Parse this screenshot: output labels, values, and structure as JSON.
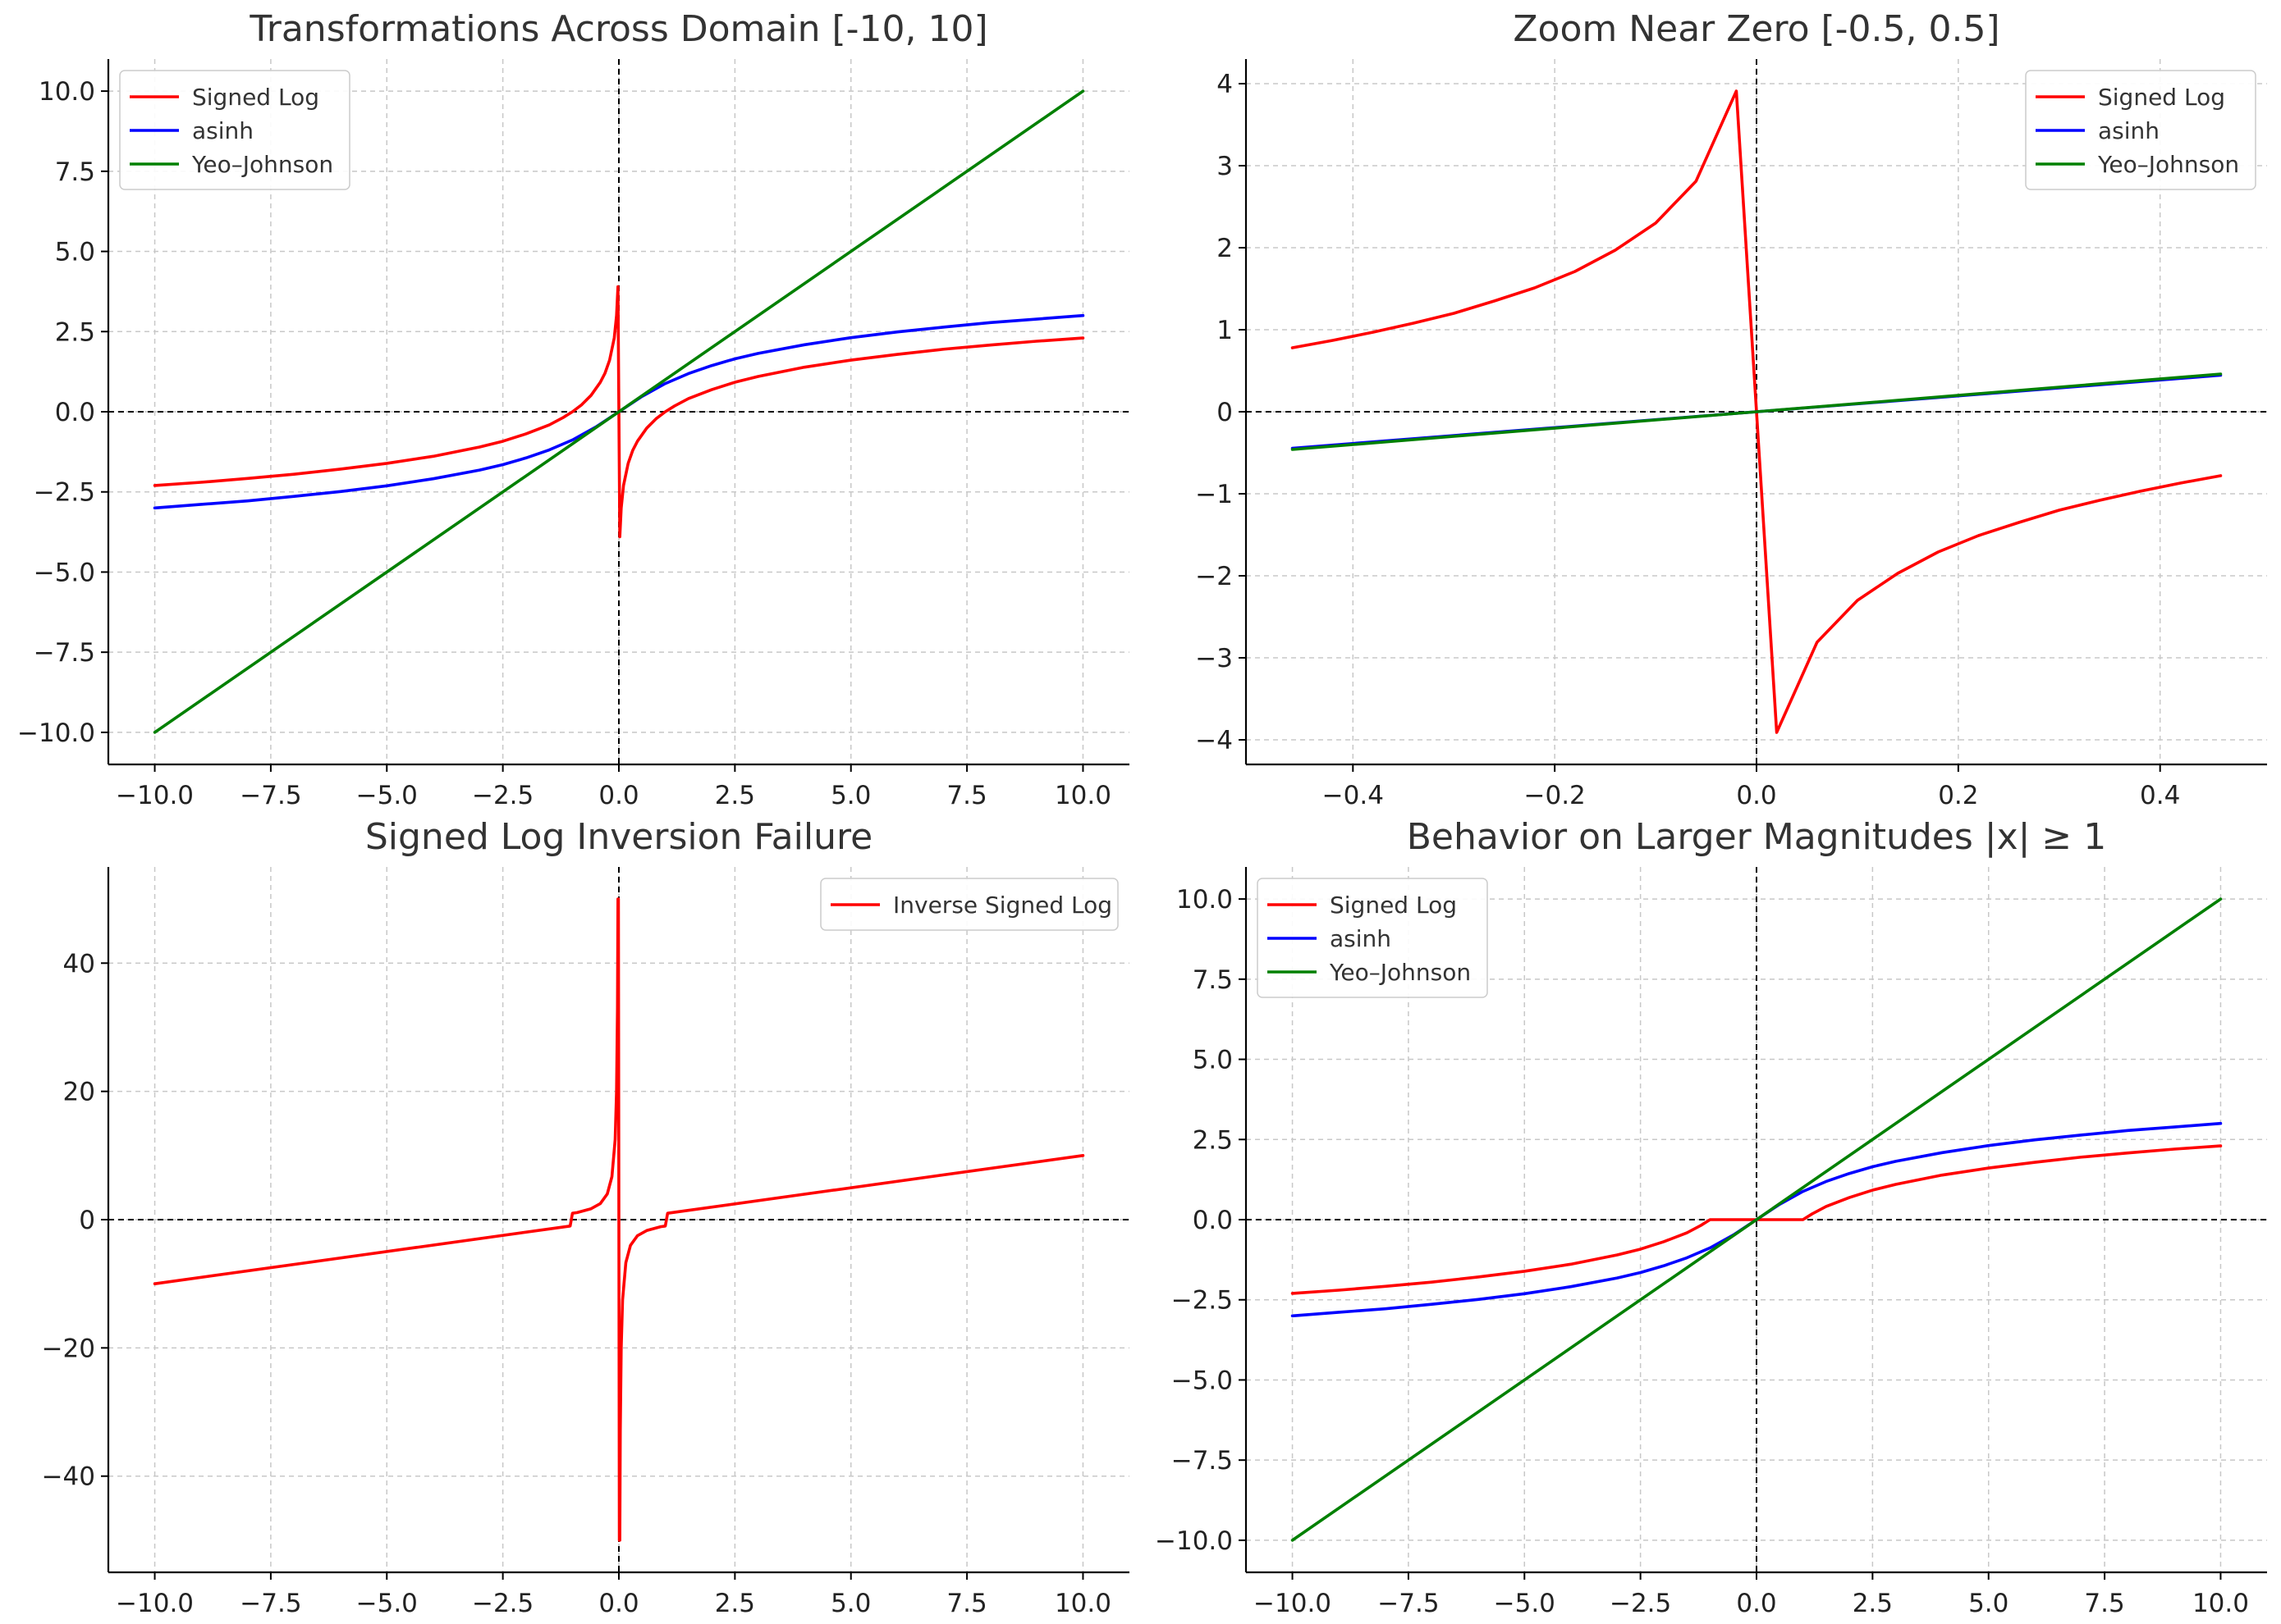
{
  "chart_data": [
    {
      "type": "line",
      "title": "Transformations Across Domain [-10, 10]",
      "xlabel": "",
      "ylabel": "",
      "xlim": [
        -11,
        11
      ],
      "ylim": [
        -11,
        11
      ],
      "xticks": [
        -10,
        -7.5,
        -5,
        -2.5,
        0,
        2.5,
        5,
        7.5,
        10
      ],
      "xtick_labels": [
        "−10.0",
        "−7.5",
        "−5.0",
        "−2.5",
        "0.0",
        "2.5",
        "5.0",
        "7.5",
        "10.0"
      ],
      "yticks": [
        -10,
        -7.5,
        -5,
        -2.5,
        0,
        2.5,
        5,
        7.5,
        10
      ],
      "ytick_labels": [
        "−10.0",
        "−7.5",
        "−5.0",
        "−2.5",
        "0.0",
        "2.5",
        "5.0",
        "7.5",
        "10.0"
      ],
      "grid": true,
      "legend_position": "top-left",
      "series": [
        {
          "name": "Signed Log",
          "color": "#ff0000",
          "x": [
            -10,
            -9,
            -8,
            -7,
            -6,
            -5,
            -4,
            -3,
            -2.5,
            -2,
            -1.5,
            -1.2,
            -1,
            -0.8,
            -0.6,
            -0.4,
            -0.3,
            -0.2,
            -0.1,
            -0.05,
            -0.02,
            0.02,
            0.05,
            0.1,
            0.2,
            0.3,
            0.4,
            0.6,
            0.8,
            1,
            1.2,
            1.5,
            2,
            2.5,
            3,
            4,
            5,
            6,
            7,
            8,
            9,
            10
          ],
          "y": [
            -2.3,
            -2.2,
            -2.08,
            -1.95,
            -1.79,
            -1.61,
            -1.39,
            -1.1,
            -0.92,
            -0.69,
            -0.41,
            -0.18,
            0,
            0.22,
            0.51,
            0.92,
            1.2,
            1.61,
            2.3,
            3.0,
            3.9,
            -3.9,
            -3.0,
            -2.3,
            -1.61,
            -1.2,
            -0.92,
            -0.51,
            -0.22,
            0,
            0.18,
            0.41,
            0.69,
            0.92,
            1.1,
            1.39,
            1.61,
            1.79,
            1.95,
            2.08,
            2.2,
            2.3
          ]
        },
        {
          "name": "asinh",
          "color": "#0000ff",
          "x": [
            -10,
            -9,
            -8,
            -7,
            -6,
            -5,
            -4,
            -3,
            -2.5,
            -2,
            -1.5,
            -1,
            -0.5,
            0,
            0.5,
            1,
            1.5,
            2,
            2.5,
            3,
            4,
            5,
            6,
            7,
            8,
            9,
            10
          ],
          "y": [
            -3.0,
            -2.89,
            -2.78,
            -2.64,
            -2.49,
            -2.31,
            -2.09,
            -1.82,
            -1.65,
            -1.44,
            -1.19,
            -0.88,
            -0.48,
            0,
            0.48,
            0.88,
            1.19,
            1.44,
            1.65,
            1.82,
            2.09,
            2.31,
            2.49,
            2.64,
            2.78,
            2.89,
            3.0
          ]
        },
        {
          "name": "Yeo–Johnson",
          "color": "#008000",
          "x": [
            -10,
            10
          ],
          "y": [
            -10,
            10
          ]
        }
      ]
    },
    {
      "type": "line",
      "title": "Zoom Near Zero [-0.5, 0.5]",
      "xlabel": "",
      "ylabel": "",
      "xlim": [
        -0.506,
        0.506
      ],
      "ylim": [
        -4.3,
        4.3
      ],
      "xticks": [
        -0.4,
        -0.2,
        0,
        0.2,
        0.4
      ],
      "xtick_labels": [
        "−0.4",
        "−0.2",
        "0.0",
        "0.2",
        "0.4"
      ],
      "yticks": [
        -4,
        -3,
        -2,
        -1,
        0,
        1,
        2,
        3,
        4
      ],
      "ytick_labels": [
        "−4",
        "−3",
        "−2",
        "−1",
        "0",
        "1",
        "2",
        "3",
        "4"
      ],
      "grid": true,
      "legend_position": "top-right",
      "series": [
        {
          "name": "Signed Log",
          "color": "#ff0000",
          "x": [
            -0.46,
            -0.42,
            -0.38,
            -0.34,
            -0.3,
            -0.26,
            -0.22,
            -0.18,
            -0.14,
            -0.1,
            -0.06,
            -0.02,
            0.02,
            0.06,
            0.1,
            0.14,
            0.18,
            0.22,
            0.26,
            0.3,
            0.34,
            0.38,
            0.42,
            0.46
          ],
          "y": [
            0.78,
            0.87,
            0.97,
            1.08,
            1.2,
            1.35,
            1.51,
            1.71,
            1.97,
            2.3,
            2.81,
            3.91,
            -3.91,
            -2.81,
            -2.3,
            -1.97,
            -1.71,
            -1.51,
            -1.35,
            -1.2,
            -1.08,
            -0.97,
            -0.87,
            -0.78
          ]
        },
        {
          "name": "asinh",
          "color": "#0000ff",
          "x": [
            -0.46,
            0.46
          ],
          "y": [
            -0.445,
            0.445
          ]
        },
        {
          "name": "Yeo–Johnson",
          "color": "#008000",
          "x": [
            -0.46,
            0.46
          ],
          "y": [
            -0.46,
            0.46
          ]
        }
      ]
    },
    {
      "type": "line",
      "title": "Signed Log Inversion Failure",
      "xlabel": "",
      "ylabel": "",
      "xlim": [
        -11,
        11
      ],
      "ylim": [
        -55,
        55
      ],
      "xticks": [
        -10,
        -7.5,
        -5,
        -2.5,
        0,
        2.5,
        5,
        7.5,
        10
      ],
      "xtick_labels": [
        "−10.0",
        "−7.5",
        "−5.0",
        "−2.5",
        "0.0",
        "2.5",
        "5.0",
        "7.5",
        "10.0"
      ],
      "yticks": [
        -40,
        -20,
        0,
        20,
        40
      ],
      "ytick_labels": [
        "−40",
        "−20",
        "0",
        "20",
        "40"
      ],
      "grid": true,
      "legend_position": "top-right",
      "series": [
        {
          "name": "Inverse Signed Log",
          "color": "#ff0000",
          "x": [
            -10,
            -1.05,
            -1.0,
            -0.9,
            -0.6,
            -0.4,
            -0.25,
            -0.15,
            -0.08,
            -0.05,
            -0.03,
            -0.02,
            -0.01,
            0.01,
            0.02,
            0.03,
            0.05,
            0.08,
            0.15,
            0.25,
            0.4,
            0.6,
            0.9,
            1.0,
            1.05,
            10
          ],
          "y": [
            -10,
            -1,
            1,
            1.1,
            1.7,
            2.5,
            4,
            6.7,
            12.5,
            20,
            33,
            50,
            50,
            -50,
            -50,
            -33,
            -20,
            -12.5,
            -6.7,
            -4,
            -2.5,
            -1.7,
            -1.1,
            -1,
            1,
            10
          ]
        }
      ]
    },
    {
      "type": "line",
      "title": "Behavior on Larger Magnitudes |x| ≥ 1",
      "xlabel": "",
      "ylabel": "",
      "xlim": [
        -11,
        11
      ],
      "ylim": [
        -11,
        11
      ],
      "xticks": [
        -10,
        -7.5,
        -5,
        -2.5,
        0,
        2.5,
        5,
        7.5,
        10
      ],
      "xtick_labels": [
        "−10.0",
        "−7.5",
        "−5.0",
        "−2.5",
        "0.0",
        "2.5",
        "5.0",
        "7.5",
        "10.0"
      ],
      "yticks": [
        -10,
        -7.5,
        -5,
        -2.5,
        0,
        2.5,
        5,
        7.5,
        10
      ],
      "ytick_labels": [
        "−10.0",
        "−7.5",
        "−5.0",
        "−2.5",
        "0.0",
        "2.5",
        "5.0",
        "7.5",
        "10.0"
      ],
      "grid": true,
      "legend_position": "top-left",
      "series": [
        {
          "name": "Signed Log",
          "color": "#ff0000",
          "x": [
            -10,
            -9,
            -8,
            -7,
            -6,
            -5,
            -4,
            -3,
            -2.5,
            -2,
            -1.5,
            -1.2,
            -1,
            1,
            1.2,
            1.5,
            2,
            2.5,
            3,
            4,
            5,
            6,
            7,
            8,
            9,
            10
          ],
          "y": [
            -2.3,
            -2.2,
            -2.08,
            -1.95,
            -1.79,
            -1.61,
            -1.39,
            -1.1,
            -0.92,
            -0.69,
            -0.41,
            -0.18,
            0,
            0,
            0.18,
            0.41,
            0.69,
            0.92,
            1.1,
            1.39,
            1.61,
            1.79,
            1.95,
            2.08,
            2.2,
            2.3
          ]
        },
        {
          "name": "asinh",
          "color": "#0000ff",
          "x": [
            -10,
            -9,
            -8,
            -7,
            -6,
            -5,
            -4,
            -3,
            -2.5,
            -2,
            -1.5,
            -1,
            -0.5,
            0,
            0.5,
            1,
            1.5,
            2,
            2.5,
            3,
            4,
            5,
            6,
            7,
            8,
            9,
            10
          ],
          "y": [
            -3.0,
            -2.89,
            -2.78,
            -2.64,
            -2.49,
            -2.31,
            -2.09,
            -1.82,
            -1.65,
            -1.44,
            -1.19,
            -0.88,
            -0.48,
            0,
            0.48,
            0.88,
            1.19,
            1.44,
            1.65,
            1.82,
            2.09,
            2.31,
            2.49,
            2.64,
            2.78,
            2.89,
            3.0
          ]
        },
        {
          "name": "Yeo–Johnson",
          "color": "#008000",
          "x": [
            -10,
            10
          ],
          "y": [
            -10,
            10
          ]
        }
      ]
    }
  ]
}
